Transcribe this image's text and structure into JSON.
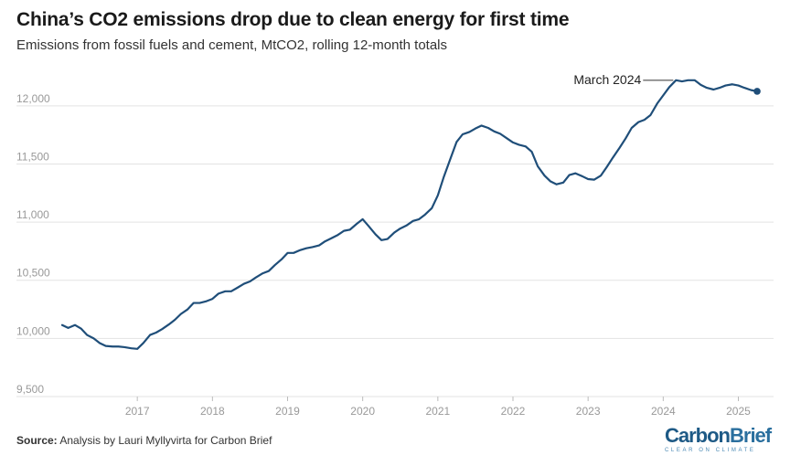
{
  "header": {
    "title": "China’s CO2 emissions drop due to clean energy for first time",
    "subtitle": "Emissions from fossil fuels and cement, MtCO2, rolling 12-month totals"
  },
  "footer": {
    "source_label": "Source:",
    "source_text": "Analysis by Lauri Myllyvirta for Carbon Brief"
  },
  "logo": {
    "word1": "Carbon",
    "word2": "Brief",
    "tagline": "CLEAR ON CLIMATE"
  },
  "colors": {
    "line": "#1f4e79",
    "grid": "#e3e3e3",
    "axis_text": "#999999",
    "annotation_text": "#222222"
  },
  "chart_data": {
    "type": "line",
    "title": "China’s CO2 emissions drop due to clean energy for first time",
    "subtitle": "Emissions from fossil fuels and cement, MtCO2, rolling 12-month totals",
    "xlabel": "",
    "ylabel": "",
    "ylim": [
      9500,
      12250
    ],
    "xlim": [
      2016.0,
      2025.42
    ],
    "yticks": [
      9500,
      10000,
      10500,
      11000,
      11500,
      12000
    ],
    "ytick_labels": [
      "9,500",
      "10,000",
      "10,500",
      "11,000",
      "11,500",
      "12,000"
    ],
    "xticks": [
      2017,
      2018,
      2019,
      2020,
      2021,
      2022,
      2023,
      2024,
      2025
    ],
    "xtick_labels": [
      "2017",
      "2018",
      "2019",
      "2020",
      "2021",
      "2022",
      "2023",
      "2024",
      "2025"
    ],
    "grid": "horizontal",
    "legend": "none",
    "annotation": {
      "text": "March 2024",
      "x": 2024.17,
      "y": 12220
    },
    "end_marker": {
      "x": 2025.25,
      "y": 12125
    },
    "series": [
      {
        "x": [
          2016.0,
          2016.08,
          2016.17,
          2016.25,
          2016.33,
          2016.42,
          2016.5,
          2016.58,
          2016.67,
          2016.75,
          2016.83,
          2016.92,
          2017.0,
          2017.08,
          2017.17,
          2017.25,
          2017.33,
          2017.42,
          2017.5,
          2017.58,
          2017.67,
          2017.75,
          2017.83,
          2017.92,
          2018.0,
          2018.08,
          2018.17,
          2018.25,
          2018.33,
          2018.42,
          2018.5,
          2018.58,
          2018.67,
          2018.75,
          2018.83,
          2018.92,
          2019.0,
          2019.08,
          2019.17,
          2019.25,
          2019.33,
          2019.42,
          2019.5,
          2019.58,
          2019.67,
          2019.75,
          2019.83,
          2019.92,
          2020.0,
          2020.08,
          2020.17,
          2020.25,
          2020.33,
          2020.42,
          2020.5,
          2020.58,
          2020.67,
          2020.75,
          2020.83,
          2020.92,
          2021.0,
          2021.08,
          2021.17,
          2021.25,
          2021.33,
          2021.42,
          2021.5,
          2021.58,
          2021.67,
          2021.75,
          2021.83,
          2021.92,
          2022.0,
          2022.08,
          2022.17,
          2022.25,
          2022.33,
          2022.42,
          2022.5,
          2022.58,
          2022.67,
          2022.75,
          2022.83,
          2022.92,
          2023.0,
          2023.08,
          2023.17,
          2023.25,
          2023.33,
          2023.42,
          2023.5,
          2023.58,
          2023.67,
          2023.75,
          2023.83,
          2023.92,
          2024.0,
          2024.08,
          2024.17,
          2024.25,
          2024.33,
          2024.42,
          2024.5,
          2024.58,
          2024.67,
          2024.75,
          2024.83,
          2024.92,
          2025.0,
          2025.08,
          2025.17,
          2025.25
        ],
        "values": [
          10115,
          10090,
          10115,
          10085,
          10030,
          10000,
          9960,
          9935,
          9930,
          9930,
          9925,
          9915,
          9910,
          9960,
          10030,
          10050,
          10080,
          10120,
          10160,
          10210,
          10250,
          10305,
          10305,
          10320,
          10340,
          10385,
          10405,
          10405,
          10435,
          10470,
          10490,
          10525,
          10560,
          10580,
          10630,
          10680,
          10735,
          10735,
          10760,
          10775,
          10785,
          10800,
          10835,
          10860,
          10890,
          10925,
          10935,
          10985,
          11025,
          10965,
          10895,
          10845,
          10855,
          10910,
          10945,
          10970,
          11010,
          11025,
          11065,
          11120,
          11230,
          11390,
          11550,
          11690,
          11755,
          11775,
          11805,
          11830,
          11810,
          11780,
          11760,
          11720,
          11685,
          11665,
          11650,
          11605,
          11480,
          11400,
          11350,
          11325,
          11340,
          11405,
          11420,
          11395,
          11370,
          11365,
          11400,
          11475,
          11555,
          11640,
          11720,
          11810,
          11860,
          11880,
          11920,
          12020,
          12090,
          12160,
          12220,
          12210,
          12220,
          12220,
          12180,
          12155,
          12140,
          12155,
          12175,
          12185,
          12175,
          12155,
          12135,
          12125
        ]
      }
    ]
  }
}
